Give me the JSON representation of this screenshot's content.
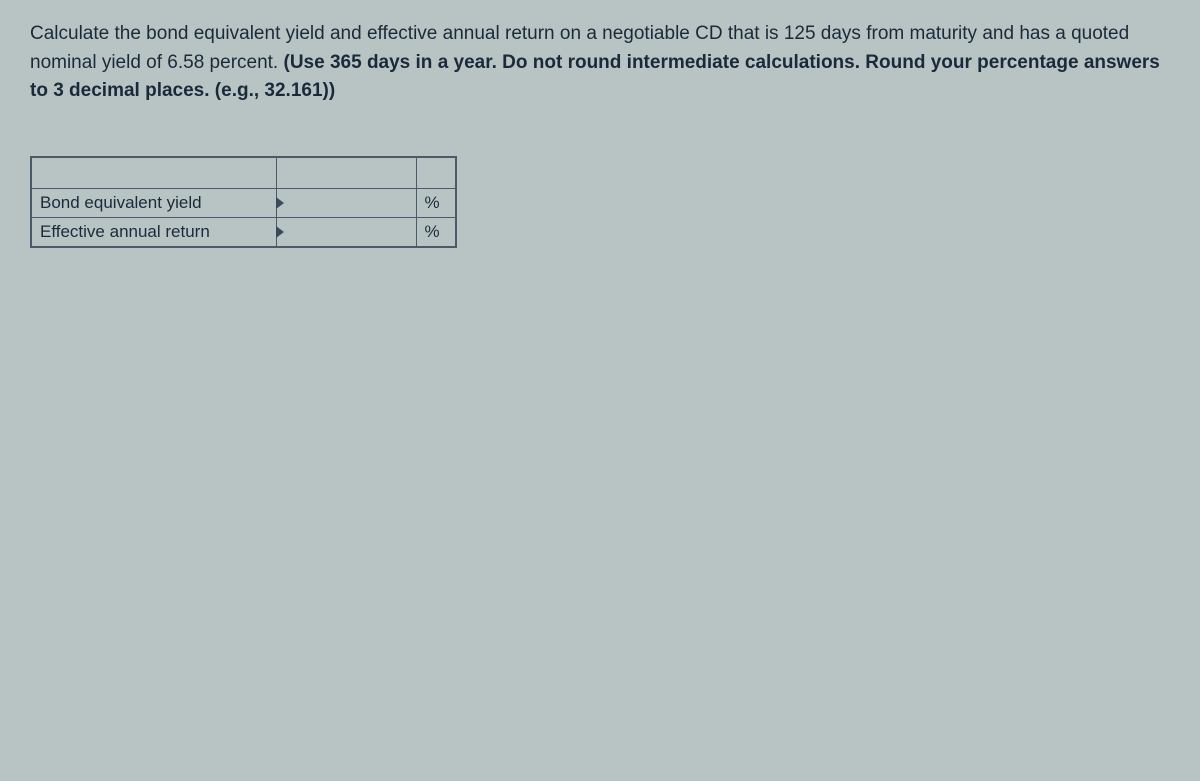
{
  "question": {
    "part1": "Calculate the bond equivalent yield and effective annual return on a negotiable CD that is 125 days from maturity and has a quoted nominal yield of 6.58 percent. ",
    "bold_part": "(Use 365 days in a year. Do not round intermediate calculations. Round your percentage answers to 3 decimal places. (e.g., 32.161))"
  },
  "table": {
    "rows": [
      {
        "label": "Bond equivalent yield",
        "value": "",
        "unit": "%"
      },
      {
        "label": "Effective annual return",
        "value": "",
        "unit": "%"
      }
    ]
  },
  "colors": {
    "background": "#b8c4c4",
    "text": "#1a2a3a",
    "border": "#4a5a6a"
  }
}
